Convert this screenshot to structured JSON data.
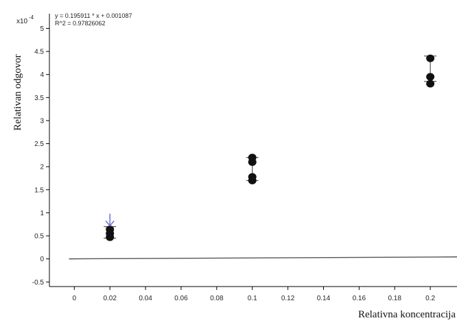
{
  "chart_data": {
    "type": "scatter",
    "title": "",
    "xlabel": "Relativna koncentracija",
    "ylabel": "Relativan odgovor",
    "y_scale_label": "x10",
    "y_scale_exponent": "-4",
    "xlim": [
      -0.014,
      0.215
    ],
    "ylim": [
      -0.6,
      5.2
    ],
    "x_ticks": [
      "0",
      "0.02",
      "0.04",
      "0.06",
      "0.08",
      "0.1",
      "0.12",
      "0.14",
      "0.16",
      "0.18",
      "0.2"
    ],
    "y_ticks": [
      "-0.5",
      "0",
      "0.5",
      "1",
      "1.5",
      "2",
      "2.5",
      "3",
      "3.5",
      "4",
      "4.5",
      "5"
    ],
    "annotations": {
      "equation": "y = 0.195911 * x + 0.001087",
      "r_squared": "R^2 = 0.97826062"
    },
    "fit_line": {
      "slope": 0.195911,
      "intercept": 0.001087,
      "x_range": [
        -0.003,
        0.215
      ]
    },
    "points": [
      {
        "x": 0.02,
        "y": 0.47
      },
      {
        "x": 0.02,
        "y": 0.55
      },
      {
        "x": 0.02,
        "y": 0.64
      },
      {
        "x": 0.1,
        "y": 1.7
      },
      {
        "x": 0.1,
        "y": 1.78
      },
      {
        "x": 0.1,
        "y": 2.1
      },
      {
        "x": 0.1,
        "y": 2.2
      },
      {
        "x": 0.2,
        "y": 3.8
      },
      {
        "x": 0.2,
        "y": 3.95
      },
      {
        "x": 0.2,
        "y": 4.35
      }
    ],
    "error_bars": [
      {
        "x": 0.02,
        "low": 0.45,
        "high": 0.7
      },
      {
        "x": 0.1,
        "low": 1.7,
        "high": 2.2
      },
      {
        "x": 0.2,
        "low": 3.85,
        "high": 4.4
      }
    ],
    "arrow_marker_x": 0.02,
    "grid": false,
    "colors": {
      "points": "#111111",
      "line": "#555555",
      "axis": "#000000",
      "arrow": "#6b6bd6"
    }
  }
}
